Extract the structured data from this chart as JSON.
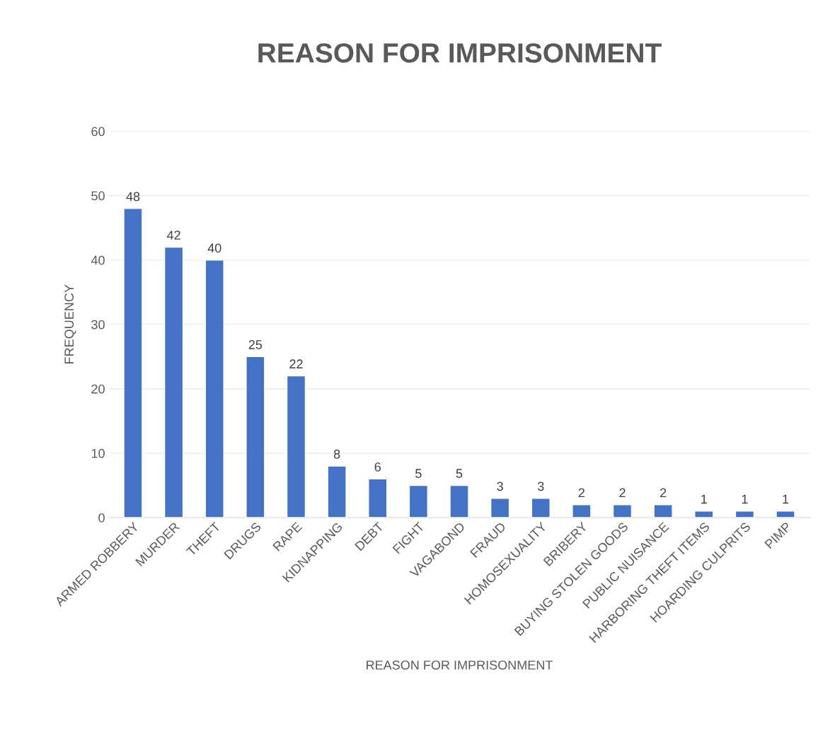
{
  "chart_data": {
    "type": "bar",
    "title": "REASON FOR IMPRISONMENT",
    "xlabel": "REASON FOR IMPRISONMENT",
    "ylabel": "FREQUENCY",
    "categories": [
      "ARMED ROBBERY",
      "MURDER",
      "THEFT",
      "DRUGS",
      "RAPE",
      "KIDNAPPING",
      "DEBT",
      "FIGHT",
      "VAGABOND",
      "FRAUD",
      "HOMOSEXUALITY",
      "BRIBERY",
      "BUYING STOLEN GOODS",
      "PUBLIC NUISANCE",
      "HARBORING THEFT ITEMS",
      "HOARDING CULPRITS",
      "PIMP"
    ],
    "values": [
      48,
      42,
      40,
      25,
      22,
      8,
      6,
      5,
      5,
      3,
      3,
      2,
      2,
      2,
      1,
      1,
      1
    ],
    "color": "#4472c4",
    "ylim": [
      0,
      60
    ],
    "yticks": [
      0,
      10,
      20,
      30,
      40,
      50,
      60
    ],
    "grid": "y",
    "data_labels": true
  }
}
